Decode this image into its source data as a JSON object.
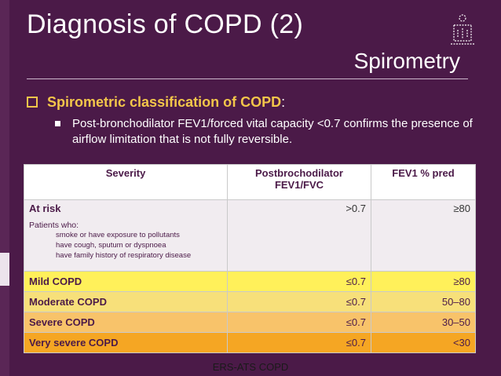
{
  "slide": {
    "title": "Diagnosis of COPD (2)",
    "subtitle": "Spirometry",
    "footer": "ERS-ATS COPD",
    "colors": {
      "background": "#4b1a48",
      "bullet": "#f3c64a",
      "mild": "#fff05a",
      "moderate": "#f7e07a",
      "severe": "#f8c36a",
      "very_severe": "#f5a623"
    }
  },
  "bullets": {
    "level1": {
      "text": "Spirometric classification of COPD",
      "suffix": ":"
    },
    "level2": {
      "text": "Post-bronchodilator FEV1/forced vital capacity <0.7 confirms the presence of airflow limitation that is not fully reversible."
    }
  },
  "table": {
    "headers": {
      "severity": "Severity",
      "ratio": "Postbrochodilator FEV1/FVC",
      "fev1": "FEV1 % pred"
    },
    "at_risk": {
      "name": "At risk",
      "patients_who": "Patients who:",
      "items": [
        "smoke or have exposure to pollutants",
        "have cough, sputum or dyspnoea",
        "have family history of respiratory disease"
      ],
      "ratio": ">0.7",
      "fev1": "≥80"
    },
    "rows": [
      {
        "severity": "Mild COPD",
        "ratio": "≤0.7",
        "fev1": "≥80"
      },
      {
        "severity": "Moderate COPD",
        "ratio": "≤0.7",
        "fev1": "50–80"
      },
      {
        "severity": "Severe COPD",
        "ratio": "≤0.7",
        "fev1": "30–50"
      },
      {
        "severity": "Very severe COPD",
        "ratio": "≤0.7",
        "fev1": "<30"
      }
    ]
  }
}
